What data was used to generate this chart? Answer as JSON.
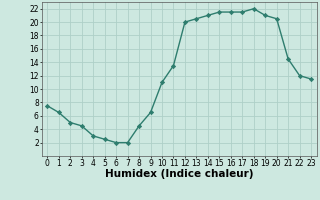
{
  "x": [
    0,
    1,
    2,
    3,
    4,
    5,
    6,
    7,
    8,
    9,
    10,
    11,
    12,
    13,
    14,
    15,
    16,
    17,
    18,
    19,
    20,
    21,
    22,
    23
  ],
  "y": [
    7.5,
    6.5,
    5.0,
    4.5,
    3.0,
    2.5,
    2.0,
    2.0,
    4.5,
    6.5,
    11.0,
    13.5,
    20.0,
    20.5,
    21.0,
    21.5,
    21.5,
    21.5,
    22.0,
    21.0,
    20.5,
    14.5,
    12.0,
    11.5
  ],
  "line_color": "#2e7d6e",
  "marker": "D",
  "marker_size": 2.2,
  "bg_color": "#cde8e0",
  "grid_color": "#aed0c8",
  "xlabel": "Humidex (Indice chaleur)",
  "xlim": [
    -0.5,
    23.5
  ],
  "ylim": [
    0,
    23
  ],
  "xticks": [
    0,
    1,
    2,
    3,
    4,
    5,
    6,
    7,
    8,
    9,
    10,
    11,
    12,
    13,
    14,
    15,
    16,
    17,
    18,
    19,
    20,
    21,
    22,
    23
  ],
  "yticks": [
    2,
    4,
    6,
    8,
    10,
    12,
    14,
    16,
    18,
    20,
    22
  ],
  "tick_fontsize": 5.5,
  "xlabel_fontsize": 7.5,
  "line_width": 1.0
}
